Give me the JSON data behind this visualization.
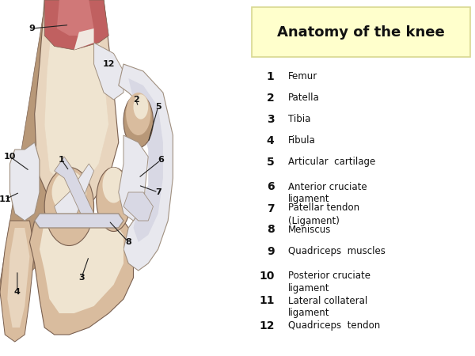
{
  "title": "Anatomy of the knee",
  "title_bg": "#ffffcc",
  "title_border": "#d8d890",
  "bg_color": "#ffffff",
  "legend_items": [
    {
      "num": "1",
      "text": "Femur"
    },
    {
      "num": "2",
      "text": "Patella"
    },
    {
      "num": "3",
      "text": "Tibia"
    },
    {
      "num": "4",
      "text": "Fibula"
    },
    {
      "num": "5",
      "text": "Articular  cartilage"
    },
    {
      "num": "6",
      "text": "Anterior cruciate\nligament"
    },
    {
      "num": "7",
      "text": "Patellar tendon\n(Ligament)"
    },
    {
      "num": "8",
      "text": "Meniscus"
    },
    {
      "num": "9",
      "text": "Quadriceps  muscles"
    },
    {
      "num": "10",
      "text": "Posterior cruciate\nligament"
    },
    {
      "num": "11",
      "text": "Lateral collateral\nligament"
    },
    {
      "num": "12",
      "text": "Quadriceps  tendon"
    }
  ],
  "colors": {
    "bone_base": "#d9bc9e",
    "bone_light": "#e8d5be",
    "bone_lighter": "#efe4d0",
    "bone_dark": "#b89878",
    "bone_shadow": "#c4a882",
    "muscle_dark": "#c06060",
    "muscle_mid": "#d07878",
    "muscle_light": "#e09898",
    "white_tissue": "#e8e8ee",
    "white_tissue2": "#d8d8e4",
    "cartilage_gray": "#c0c0cc",
    "outline": "#7a6050",
    "outline_light": "#a09080",
    "label_color": "#111111",
    "line_color": "#222222"
  },
  "fig_w": 6.0,
  "fig_h": 4.5,
  "dpi": 100
}
